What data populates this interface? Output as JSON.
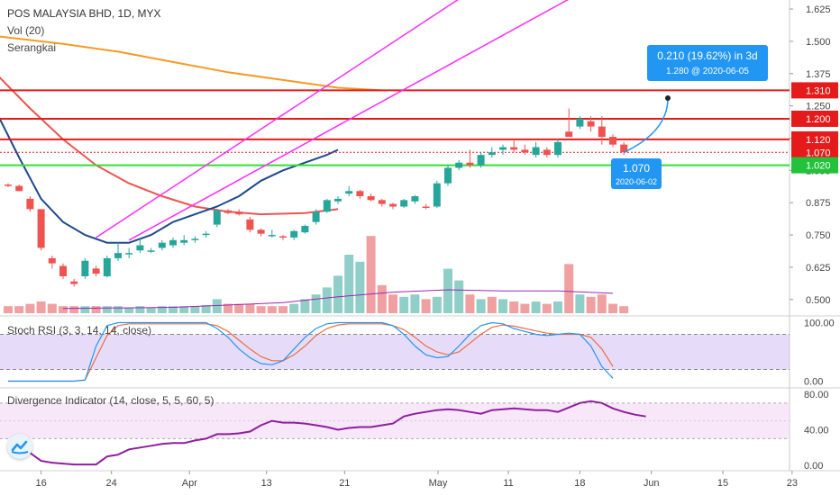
{
  "header": {
    "title": "POS MALAYSIA BHD, 1D, MYX",
    "vol_label": "Vol (20)",
    "ma_label": "Serangkai"
  },
  "panes": {
    "stoch_label": "Stoch RSI (3, 3, 14, 14, close)",
    "div_label": "Divergence Indicator (14, close, 5, 5, 60, 5)"
  },
  "colors": {
    "up": "#26a69a",
    "down": "#ef5350",
    "vol_up": "#8fcfc8",
    "vol_down": "#f0a0a0",
    "level_red": "#e51b1b",
    "level_green": "#33dd33",
    "channel": "#ff2bff",
    "ma_orange": "#f59a23",
    "ma_red": "#ef5350",
    "ma_blue": "#1e4a8d",
    "callout": "#2196f3",
    "stoch_k": "#2196f3",
    "stoch_d": "#ef6c3e",
    "stoch_band": "#d6c4f7",
    "div_line": "#8e1e9e",
    "div_band": "#f3d7f3",
    "logo": "tradingview-logo-icon"
  },
  "chart_data": [
    {
      "type": "candlestick",
      "title": "POS MALAYSIA BHD, 1D, MYX",
      "y_ticks": [
        "1.625",
        "1.500",
        "1.375",
        "1.250",
        "1.125",
        "1.000",
        "0.875",
        "0.750",
        "0.625",
        "0.500"
      ],
      "x_ticks": [
        "16",
        "24",
        "Apr",
        "13",
        "21",
        "May",
        "11",
        "18",
        "Jun",
        "15",
        "23"
      ],
      "ylim": [
        0.44,
        1.66
      ],
      "candles": [
        {
          "o": 0.945,
          "h": 0.95,
          "l": 0.935,
          "c": 0.94
        },
        {
          "o": 0.94,
          "h": 0.945,
          "l": 0.92,
          "c": 0.92
        },
        {
          "o": 0.89,
          "h": 0.9,
          "l": 0.84,
          "c": 0.85
        },
        {
          "o": 0.85,
          "h": 0.85,
          "l": 0.69,
          "c": 0.7
        },
        {
          "o": 0.66,
          "h": 0.67,
          "l": 0.62,
          "c": 0.64
        },
        {
          "o": 0.63,
          "h": 0.64,
          "l": 0.58,
          "c": 0.59
        },
        {
          "o": 0.57,
          "h": 0.58,
          "l": 0.55,
          "c": 0.56
        },
        {
          "o": 0.59,
          "h": 0.66,
          "l": 0.58,
          "c": 0.65
        },
        {
          "o": 0.62,
          "h": 0.63,
          "l": 0.59,
          "c": 0.6
        },
        {
          "o": 0.59,
          "h": 0.67,
          "l": 0.585,
          "c": 0.66
        },
        {
          "o": 0.66,
          "h": 0.72,
          "l": 0.65,
          "c": 0.68
        },
        {
          "o": 0.68,
          "h": 0.7,
          "l": 0.66,
          "c": 0.68
        },
        {
          "o": 0.69,
          "h": 0.74,
          "l": 0.68,
          "c": 0.71
        },
        {
          "o": 0.69,
          "h": 0.7,
          "l": 0.68,
          "c": 0.69
        },
        {
          "o": 0.7,
          "h": 0.73,
          "l": 0.69,
          "c": 0.72
        },
        {
          "o": 0.71,
          "h": 0.74,
          "l": 0.7,
          "c": 0.73
        },
        {
          "o": 0.72,
          "h": 0.75,
          "l": 0.71,
          "c": 0.73
        },
        {
          "o": 0.73,
          "h": 0.745,
          "l": 0.72,
          "c": 0.735
        },
        {
          "o": 0.75,
          "h": 0.765,
          "l": 0.74,
          "c": 0.755
        },
        {
          "o": 0.79,
          "h": 0.85,
          "l": 0.78,
          "c": 0.845
        },
        {
          "o": 0.845,
          "h": 0.85,
          "l": 0.83,
          "c": 0.835
        },
        {
          "o": 0.84,
          "h": 0.85,
          "l": 0.825,
          "c": 0.83
        },
        {
          "o": 0.81,
          "h": 0.82,
          "l": 0.76,
          "c": 0.77
        },
        {
          "o": 0.77,
          "h": 0.775,
          "l": 0.745,
          "c": 0.755
        },
        {
          "o": 0.75,
          "h": 0.77,
          "l": 0.74,
          "c": 0.75
        },
        {
          "o": 0.745,
          "h": 0.75,
          "l": 0.73,
          "c": 0.74
        },
        {
          "o": 0.74,
          "h": 0.77,
          "l": 0.73,
          "c": 0.765
        },
        {
          "o": 0.76,
          "h": 0.79,
          "l": 0.755,
          "c": 0.785
        },
        {
          "o": 0.8,
          "h": 0.85,
          "l": 0.79,
          "c": 0.84
        },
        {
          "o": 0.84,
          "h": 0.89,
          "l": 0.835,
          "c": 0.885
        },
        {
          "o": 0.88,
          "h": 0.9,
          "l": 0.87,
          "c": 0.89
        },
        {
          "o": 0.91,
          "h": 0.94,
          "l": 0.9,
          "c": 0.92
        },
        {
          "o": 0.92,
          "h": 0.925,
          "l": 0.89,
          "c": 0.9
        },
        {
          "o": 0.9,
          "h": 0.91,
          "l": 0.88,
          "c": 0.885
        },
        {
          "o": 0.885,
          "h": 0.89,
          "l": 0.86,
          "c": 0.87
        },
        {
          "o": 0.87,
          "h": 0.875,
          "l": 0.85,
          "c": 0.86
        },
        {
          "o": 0.86,
          "h": 0.89,
          "l": 0.855,
          "c": 0.885
        },
        {
          "o": 0.88,
          "h": 0.905,
          "l": 0.87,
          "c": 0.9
        },
        {
          "o": 0.86,
          "h": 0.87,
          "l": 0.85,
          "c": 0.855
        },
        {
          "o": 0.86,
          "h": 0.96,
          "l": 0.855,
          "c": 0.95
        },
        {
          "o": 0.95,
          "h": 1.02,
          "l": 0.94,
          "c": 1.01
        },
        {
          "o": 1.01,
          "h": 1.04,
          "l": 1.0,
          "c": 1.03
        },
        {
          "o": 1.03,
          "h": 1.08,
          "l": 1.01,
          "c": 1.02
        },
        {
          "o": 1.02,
          "h": 1.07,
          "l": 1.01,
          "c": 1.06
        },
        {
          "o": 1.06,
          "h": 1.09,
          "l": 1.05,
          "c": 1.07
        },
        {
          "o": 1.08,
          "h": 1.1,
          "l": 1.06,
          "c": 1.09
        },
        {
          "o": 1.09,
          "h": 1.12,
          "l": 1.07,
          "c": 1.08
        },
        {
          "o": 1.08,
          "h": 1.1,
          "l": 1.06,
          "c": 1.07
        },
        {
          "o": 1.06,
          "h": 1.11,
          "l": 1.05,
          "c": 1.09
        },
        {
          "o": 1.08,
          "h": 1.09,
          "l": 1.05,
          "c": 1.06
        },
        {
          "o": 1.06,
          "h": 1.12,
          "l": 1.05,
          "c": 1.11
        },
        {
          "o": 1.15,
          "h": 1.24,
          "l": 1.13,
          "c": 1.13
        },
        {
          "o": 1.17,
          "h": 1.21,
          "l": 1.16,
          "c": 1.2
        },
        {
          "o": 1.19,
          "h": 1.21,
          "l": 1.15,
          "c": 1.17
        },
        {
          "o": 1.17,
          "h": 1.21,
          "l": 1.1,
          "c": 1.13
        },
        {
          "o": 1.13,
          "h": 1.14,
          "l": 1.09,
          "c": 1.1
        },
        {
          "o": 1.1,
          "h": 1.11,
          "l": 1.06,
          "c": 1.07
        }
      ],
      "volume": [
        {
          "v": 0.03,
          "up": false
        },
        {
          "v": 0.03,
          "up": false
        },
        {
          "v": 0.04,
          "up": false
        },
        {
          "v": 0.05,
          "up": false
        },
        {
          "v": 0.04,
          "up": false
        },
        {
          "v": 0.03,
          "up": false
        },
        {
          "v": 0.03,
          "up": false
        },
        {
          "v": 0.03,
          "up": true
        },
        {
          "v": 0.03,
          "up": false
        },
        {
          "v": 0.03,
          "up": true
        },
        {
          "v": 0.03,
          "up": true
        },
        {
          "v": 0.025,
          "up": true
        },
        {
          "v": 0.03,
          "up": true
        },
        {
          "v": 0.025,
          "up": true
        },
        {
          "v": 0.03,
          "up": true
        },
        {
          "v": 0.03,
          "up": true
        },
        {
          "v": 0.03,
          "up": true
        },
        {
          "v": 0.03,
          "up": true
        },
        {
          "v": 0.035,
          "up": true
        },
        {
          "v": 0.06,
          "up": true
        },
        {
          "v": 0.04,
          "up": false
        },
        {
          "v": 0.04,
          "up": false
        },
        {
          "v": 0.04,
          "up": false
        },
        {
          "v": 0.03,
          "up": false
        },
        {
          "v": 0.03,
          "up": false
        },
        {
          "v": 0.03,
          "up": false
        },
        {
          "v": 0.04,
          "up": true
        },
        {
          "v": 0.06,
          "up": true
        },
        {
          "v": 0.08,
          "up": true
        },
        {
          "v": 0.11,
          "up": true
        },
        {
          "v": 0.16,
          "up": true
        },
        {
          "v": 0.25,
          "up": true
        },
        {
          "v": 0.22,
          "up": true
        },
        {
          "v": 0.33,
          "up": false
        },
        {
          "v": 0.12,
          "up": false
        },
        {
          "v": 0.08,
          "up": false
        },
        {
          "v": 0.07,
          "up": true
        },
        {
          "v": 0.08,
          "up": true
        },
        {
          "v": 0.06,
          "up": false
        },
        {
          "v": 0.07,
          "up": true
        },
        {
          "v": 0.19,
          "up": true
        },
        {
          "v": 0.14,
          "up": true
        },
        {
          "v": 0.08,
          "up": false
        },
        {
          "v": 0.06,
          "up": true
        },
        {
          "v": 0.07,
          "up": false
        },
        {
          "v": 0.06,
          "up": true
        },
        {
          "v": 0.05,
          "up": false
        },
        {
          "v": 0.04,
          "up": false
        },
        {
          "v": 0.05,
          "up": true
        },
        {
          "v": 0.04,
          "up": false
        },
        {
          "v": 0.05,
          "up": true
        },
        {
          "v": 0.21,
          "up": false
        },
        {
          "v": 0.08,
          "up": true
        },
        {
          "v": 0.07,
          "up": false
        },
        {
          "v": 0.08,
          "up": false
        },
        {
          "v": 0.04,
          "up": false
        },
        {
          "v": 0.03,
          "up": false
        }
      ],
      "levels": [
        {
          "value": 1.31,
          "label": "1.310",
          "color": "red"
        },
        {
          "value": 1.2,
          "label": "1.200",
          "color": "red"
        },
        {
          "value": 1.12,
          "label": "1.120",
          "color": "red"
        },
        {
          "value": 1.07,
          "label": "1.070",
          "color": "dotted"
        },
        {
          "value": 1.02,
          "label": "1.020",
          "color": "green"
        }
      ],
      "channel": {
        "upper": [
          [
            8,
            0.74
          ],
          [
            28,
            1.3
          ]
        ],
        "lower": [
          [
            11,
            0.73
          ],
          [
            32,
            1.22
          ]
        ]
      },
      "ma_orange": [
        [
          -1,
          1.52
        ],
        [
          5,
          1.49
        ],
        [
          10,
          1.46
        ],
        [
          15,
          1.42
        ],
        [
          20,
          1.38
        ],
        [
          25,
          1.35
        ],
        [
          30,
          1.32
        ],
        [
          34,
          1.31
        ]
      ],
      "ma_red": [
        [
          -1,
          1.37
        ],
        [
          2,
          1.24
        ],
        [
          5,
          1.12
        ],
        [
          8,
          1.02
        ],
        [
          11,
          0.95
        ],
        [
          14,
          0.9
        ],
        [
          17,
          0.86
        ],
        [
          20,
          0.84
        ],
        [
          23,
          0.83
        ],
        [
          27,
          0.835
        ],
        [
          30,
          0.85
        ]
      ],
      "ma_blue": [
        [
          -1,
          1.22
        ],
        [
          1,
          1.05
        ],
        [
          3,
          0.89
        ],
        [
          5,
          0.8
        ],
        [
          7,
          0.75
        ],
        [
          9,
          0.72
        ],
        [
          11,
          0.72
        ],
        [
          13,
          0.75
        ],
        [
          15,
          0.8
        ],
        [
          17,
          0.83
        ],
        [
          19,
          0.86
        ],
        [
          21,
          0.9
        ],
        [
          23,
          0.96
        ],
        [
          25,
          1.0
        ],
        [
          27,
          1.03
        ],
        [
          29,
          1.06
        ],
        [
          30,
          1.08
        ]
      ],
      "callout_top": {
        "line1": "0.210 (19.62%) in 3d",
        "line2": "1.280 @ 2020-06-05"
      },
      "callout_bottom": {
        "line1": "1.070",
        "line2": "2020-06-02"
      }
    },
    {
      "type": "line",
      "title": "Stoch RSI (3, 3, 14, 14, close)",
      "y_ticks": [
        "100.00",
        "0.00"
      ],
      "ylim": [
        -10,
        110
      ],
      "band": [
        20,
        80
      ],
      "k": [
        0,
        0,
        0,
        0,
        0,
        0,
        0,
        2,
        60,
        95,
        100,
        100,
        100,
        100,
        100,
        100,
        100,
        100,
        100,
        90,
        75,
        55,
        40,
        30,
        28,
        35,
        55,
        75,
        90,
        98,
        100,
        100,
        100,
        100,
        100,
        95,
        80,
        60,
        45,
        40,
        42,
        60,
        80,
        95,
        100,
        98,
        90,
        85,
        80,
        78,
        80,
        82,
        80,
        60,
        25,
        5
      ],
      "d": [
        0,
        0,
        0,
        0,
        0,
        0,
        0,
        2,
        40,
        78,
        95,
        98,
        98,
        98,
        98,
        98,
        98,
        98,
        98,
        95,
        85,
        70,
        55,
        42,
        35,
        35,
        45,
        60,
        78,
        90,
        96,
        98,
        98,
        98,
        98,
        95,
        88,
        75,
        60,
        50,
        45,
        50,
        65,
        80,
        92,
        96,
        94,
        90,
        86,
        82,
        80,
        80,
        80,
        75,
        55,
        25
      ]
    },
    {
      "type": "line",
      "title": "Divergence Indicator (14, close, 5, 5, 60, 5)",
      "y_ticks": [
        "80.00",
        "40.00",
        "0.00"
      ],
      "ylim": [
        -5,
        86
      ],
      "band": [
        30,
        70
      ],
      "values": [
        22,
        20,
        14,
        5,
        3,
        2,
        1,
        1,
        1,
        10,
        12,
        18,
        20,
        22,
        24,
        25,
        25,
        28,
        30,
        35,
        35,
        36,
        38,
        45,
        50,
        48,
        48,
        47,
        45,
        43,
        40,
        42,
        43,
        43,
        45,
        47,
        55,
        58,
        60,
        62,
        63,
        62,
        60,
        58,
        62,
        63,
        64,
        63,
        62,
        62,
        60,
        65,
        70,
        72,
        70,
        64,
        60,
        57,
        55
      ]
    }
  ]
}
